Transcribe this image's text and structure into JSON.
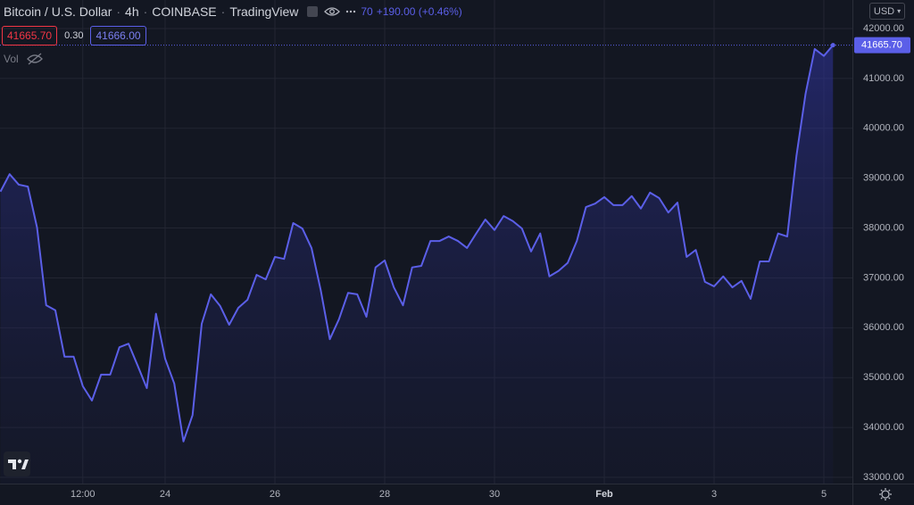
{
  "header": {
    "symbol": "Bitcoin / U.S. Dollar",
    "interval": "4h",
    "exchange": "COINBASE",
    "source": "TradingView",
    "price_tail": "70",
    "change": "+190.00 (+0.46%)",
    "bid": "41665.70",
    "spread": "0.30",
    "ask": "41666.00",
    "volume_label": "Vol",
    "currency": "USD"
  },
  "chart_data": {
    "type": "line",
    "color": "#5b5fe8",
    "grid": true,
    "categories": [
      null,
      null,
      null,
      null,
      null,
      null,
      null,
      null,
      null,
      "12:00",
      null,
      null,
      null,
      null,
      null,
      null,
      null,
      null,
      "24",
      null,
      null,
      null,
      null,
      null,
      null,
      null,
      null,
      null,
      null,
      null,
      "26",
      null,
      null,
      null,
      null,
      null,
      null,
      null,
      null,
      null,
      null,
      null,
      "28",
      null,
      null,
      null,
      null,
      null,
      null,
      null,
      null,
      null,
      null,
      null,
      "30",
      null,
      null,
      null,
      null,
      null,
      null,
      null,
      null,
      null,
      null,
      null,
      "Feb",
      null,
      null,
      null,
      null,
      null,
      null,
      null,
      null,
      null,
      null,
      null,
      "3",
      null,
      null,
      null,
      null,
      null,
      null,
      null,
      null,
      null,
      null,
      null,
      "5",
      null
    ],
    "values": [
      38730,
      39080,
      38870,
      38830,
      38010,
      36450,
      36350,
      35420,
      35420,
      34830,
      34540,
      35060,
      35060,
      35610,
      35680,
      35240,
      34790,
      36280,
      35380,
      34880,
      33720,
      34250,
      36080,
      36670,
      36440,
      36060,
      36400,
      36560,
      37060,
      36970,
      37420,
      37380,
      38100,
      37990,
      37600,
      36760,
      35770,
      36170,
      36700,
      36670,
      36220,
      37210,
      37350,
      36810,
      36450,
      37210,
      37240,
      37740,
      37740,
      37830,
      37740,
      37600,
      37890,
      38170,
      37960,
      38240,
      38140,
      37990,
      37530,
      37890,
      37030,
      37140,
      37300,
      37740,
      38420,
      38490,
      38620,
      38460,
      38460,
      38640,
      38390,
      38710,
      38600,
      38310,
      38510,
      37420,
      37560,
      36920,
      36830,
      37030,
      36810,
      36940,
      36580,
      37330,
      37330,
      37890,
      37830,
      39440,
      40690,
      41590,
      41450,
      41665.7
    ],
    "ylim": [
      32875,
      42572
    ],
    "yticks": [
      {
        "value": 33000,
        "label": "33000.00"
      },
      {
        "value": 34000,
        "label": "34000.00"
      },
      {
        "value": 35000,
        "label": "35000.00"
      },
      {
        "value": 36000,
        "label": "36000.00"
      },
      {
        "value": 37000,
        "label": "37000.00"
      },
      {
        "value": 38000,
        "label": "38000.00"
      },
      {
        "value": 39000,
        "label": "39000.00"
      },
      {
        "value": 40000,
        "label": "40000.00"
      },
      {
        "value": 41000,
        "label": "41000.00"
      },
      {
        "value": 42000,
        "label": "42000.00"
      }
    ],
    "last_price": {
      "value": 41665.7,
      "label": "41665.70"
    }
  }
}
